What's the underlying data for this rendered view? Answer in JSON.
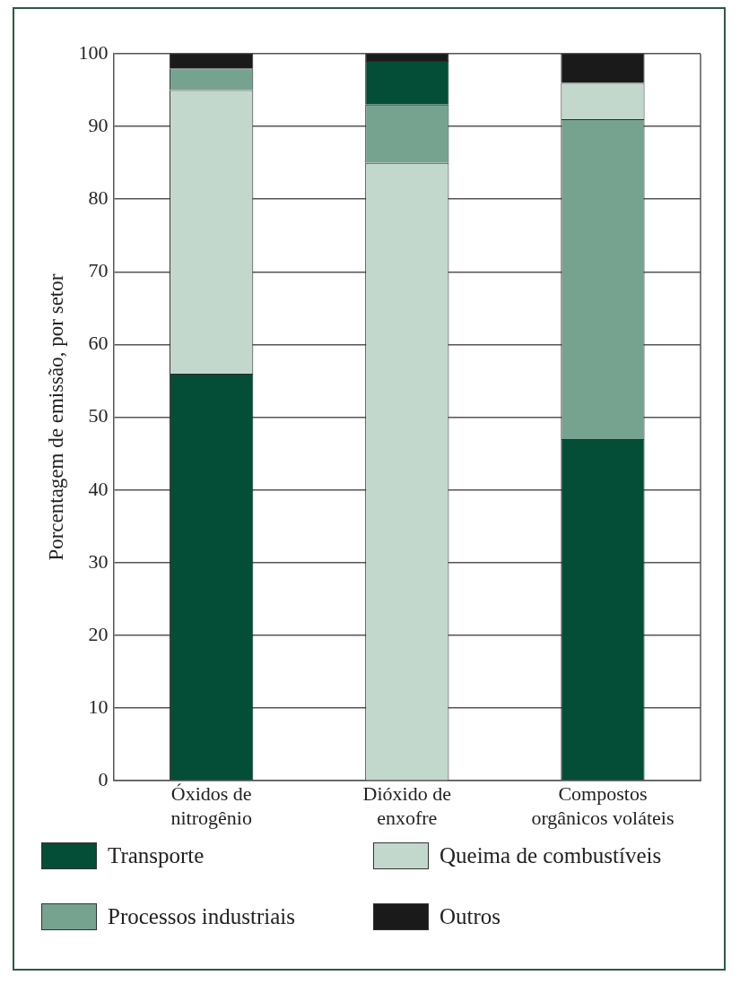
{
  "chart_data": {
    "type": "bar",
    "stacked": true,
    "ylabel": "Porcentagem de emissão, por setor",
    "categories": [
      "Óxidos de nitrogênio",
      "Dióxido de enxofre",
      "Compostos orgânicos voláteis"
    ],
    "series": [
      {
        "name": "Transporte",
        "color": "#044d36",
        "values": [
          56,
          null,
          47
        ]
      },
      {
        "name": "Queima de combustíveis",
        "color": "#c3d8cc",
        "values": [
          39,
          85,
          null
        ]
      },
      {
        "name": "Processos industriais",
        "color": "#76a390",
        "values": [
          3,
          8,
          44
        ]
      },
      {
        "color": "#044d36",
        "values": [
          null,
          6,
          null
        ]
      },
      {
        "color": "#c3d8cc",
        "values": [
          null,
          null,
          5
        ]
      },
      {
        "name": "Outros",
        "color": "#1a1a1a",
        "values": [
          2,
          1,
          4
        ]
      }
    ],
    "ylim": [
      0,
      100
    ],
    "yticks": [
      0,
      10,
      20,
      30,
      40,
      50,
      60,
      70,
      80,
      90,
      100
    ],
    "grid": "y",
    "legend": "bottom"
  }
}
